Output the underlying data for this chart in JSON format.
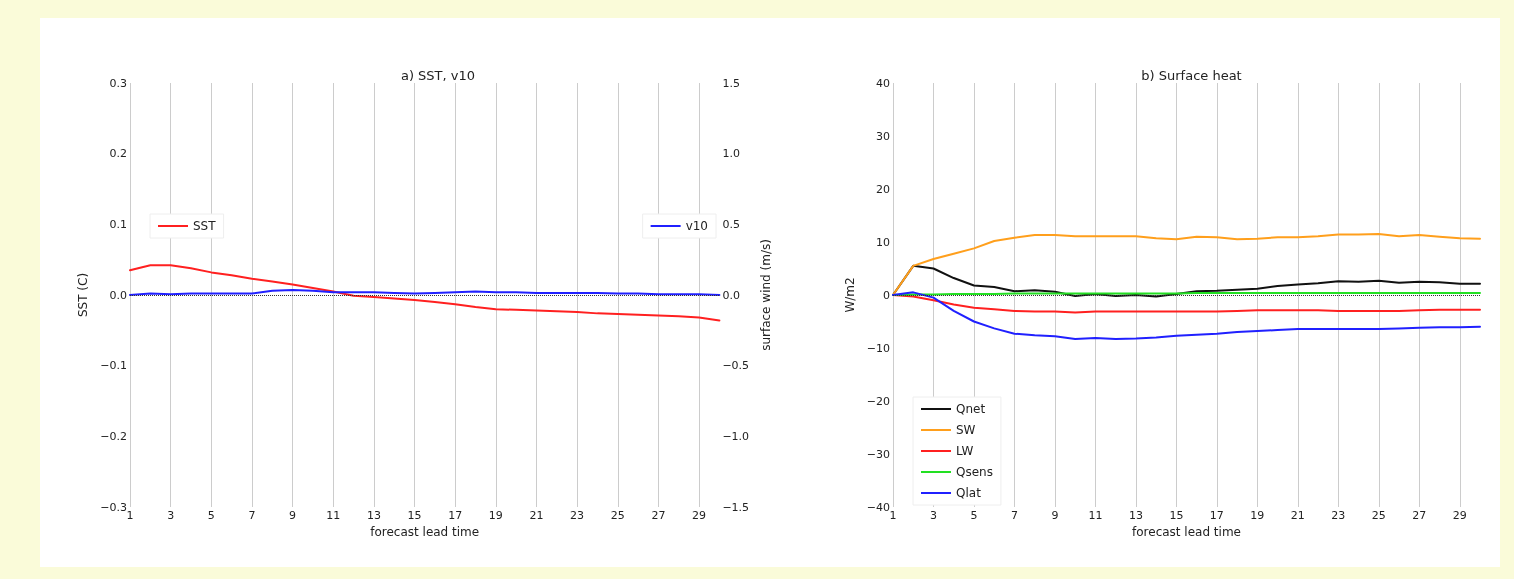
{
  "chart_data": [
    {
      "type": "line",
      "title": "a) SST, v10",
      "xlabel": "forecast lead time",
      "ylabel": "SST (C)",
      "y2label": "surface wind (m/s)",
      "x": [
        1,
        2,
        3,
        4,
        5,
        6,
        7,
        8,
        9,
        10,
        11,
        12,
        13,
        14,
        15,
        16,
        17,
        18,
        19,
        20,
        21,
        22,
        23,
        24,
        25,
        26,
        27,
        28,
        29,
        30
      ],
      "series": [
        {
          "name": "SST",
          "color": "#ff2020",
          "values": [
            0.035,
            0.042,
            0.042,
            0.038,
            0.032,
            0.028,
            0.023,
            0.019,
            0.015,
            0.01,
            0.005,
            -0.001,
            -0.003,
            -0.005,
            -0.007,
            -0.01,
            -0.013,
            -0.017,
            -0.02,
            -0.021,
            -0.022,
            -0.023,
            -0.024,
            -0.026,
            -0.027,
            -0.028,
            -0.029,
            -0.03,
            -0.032,
            -0.036
          ]
        },
        {
          "name": "v10",
          "color": "#2020ff",
          "axis": "y2",
          "values": [
            0,
            0.01,
            0.005,
            0.01,
            0.01,
            0.01,
            0.01,
            0.03,
            0.035,
            0.03,
            0.02,
            0.02,
            0.02,
            0.015,
            0.01,
            0.015,
            0.02,
            0.025,
            0.02,
            0.02,
            0.015,
            0.015,
            0.015,
            0.015,
            0.01,
            0.01,
            0.005,
            0.005,
            0.005,
            0
          ]
        }
      ],
      "xlim": [
        1,
        30
      ],
      "xticks": [
        1,
        3,
        5,
        7,
        9,
        11,
        13,
        15,
        17,
        19,
        21,
        23,
        25,
        27,
        29
      ],
      "ylim": [
        -0.3,
        0.3
      ],
      "yticks": [
        {
          "value": -0.3,
          "label": "−0.3"
        },
        {
          "value": -0.2,
          "label": "−0.2"
        },
        {
          "value": -0.1,
          "label": "−0.1"
        },
        {
          "value": 0,
          "label": "0.0"
        },
        0.1,
        0.2,
        0.3
      ],
      "y2lim": [
        -1.5,
        1.5
      ],
      "y2ticks": [
        {
          "value": -1.5,
          "label": "−1.5"
        },
        {
          "value": -1,
          "label": "−1.0"
        },
        {
          "value": -0.5,
          "label": "−0.5"
        },
        {
          "value": 0,
          "label": "0.0"
        },
        0.5,
        {
          "value": 1,
          "label": "1.0"
        },
        1.5
      ],
      "ref_lines": [
        {
          "axis": "y",
          "value": 0,
          "color": "#333333",
          "line_style": "dotted"
        }
      ],
      "grid": "x",
      "legend": "left",
      "line_style": "solid",
      "marker": "none"
    },
    {
      "type": "line",
      "title": "b) Surface heat",
      "xlabel": "forecast lead time",
      "ylabel": "W/m2",
      "x": [
        1,
        2,
        3,
        4,
        5,
        6,
        7,
        8,
        9,
        10,
        11,
        12,
        13,
        14,
        15,
        16,
        17,
        18,
        19,
        20,
        21,
        22,
        23,
        24,
        25,
        26,
        27,
        28,
        29,
        30
      ],
      "series": [
        {
          "name": "Qnet",
          "color": "#111111",
          "values": [
            0,
            5.5,
            5,
            3.2,
            1.8,
            1.5,
            0.7,
            0.9,
            0.6,
            -0.2,
            0.2,
            -0.2,
            0,
            -0.3,
            0.2,
            0.7,
            0.8,
            1,
            1.2,
            1.7,
            2,
            2.2,
            2.6,
            2.5,
            2.7,
            2.3,
            2.5,
            2.4,
            2.1,
            2.1
          ]
        },
        {
          "name": "SW",
          "color": "#ff9f1c",
          "values": [
            0,
            5.5,
            6.8,
            7.8,
            8.8,
            10.2,
            10.8,
            11.3,
            11.3,
            11.1,
            11.1,
            11.1,
            11.1,
            10.7,
            10.5,
            11,
            10.9,
            10.5,
            10.6,
            10.9,
            10.9,
            11.1,
            11.4,
            11.4,
            11.5,
            11.1,
            11.3,
            11,
            10.7,
            10.6
          ]
        },
        {
          "name": "LW",
          "color": "#ff2020",
          "values": [
            0,
            -0.3,
            -1,
            -1.8,
            -2.4,
            -2.7,
            -3,
            -3.1,
            -3.1,
            -3.3,
            -3.1,
            -3.1,
            -3.1,
            -3.1,
            -3.1,
            -3.1,
            -3.1,
            -3,
            -2.9,
            -2.9,
            -2.9,
            -2.9,
            -3,
            -3,
            -3,
            -3,
            -2.9,
            -2.8,
            -2.8,
            -2.8
          ]
        },
        {
          "name": "Qsens",
          "color": "#22e022",
          "values": [
            0,
            0.1,
            0.1,
            0.2,
            0.2,
            0.2,
            0.3,
            0.3,
            0.3,
            0.3,
            0.3,
            0.3,
            0.3,
            0.3,
            0.3,
            0.4,
            0.4,
            0.4,
            0.4,
            0.4,
            0.4,
            0.4,
            0.4,
            0.4,
            0.4,
            0.4,
            0.4,
            0.4,
            0.4,
            0.4
          ]
        },
        {
          "name": "Qlat",
          "color": "#2020ff",
          "values": [
            0,
            0.5,
            -0.5,
            -3,
            -5,
            -6.3,
            -7.3,
            -7.6,
            -7.8,
            -8.3,
            -8.1,
            -8.3,
            -8.2,
            -8,
            -7.7,
            -7.5,
            -7.3,
            -7,
            -6.8,
            -6.6,
            -6.4,
            -6.4,
            -6.4,
            -6.4,
            -6.4,
            -6.3,
            -6.2,
            -6.1,
            -6.1,
            -6
          ]
        }
      ],
      "xlim": [
        1,
        30
      ],
      "xticks": [
        1,
        3,
        5,
        7,
        9,
        11,
        13,
        15,
        17,
        19,
        21,
        23,
        25,
        27,
        29
      ],
      "ylim": [
        -40,
        40
      ],
      "yticks": [
        {
          "value": -40,
          "label": "−40"
        },
        {
          "value": -30,
          "label": "−30"
        },
        {
          "value": -20,
          "label": "−20"
        },
        {
          "value": -10,
          "label": "−10"
        },
        0,
        10,
        20,
        30,
        40
      ],
      "ref_lines": [
        {
          "axis": "y",
          "value": 0,
          "color": "#333333",
          "line_style": "dotted"
        }
      ],
      "grid": "x",
      "legend": "bottom left",
      "line_style": "solid",
      "marker": "none"
    }
  ]
}
